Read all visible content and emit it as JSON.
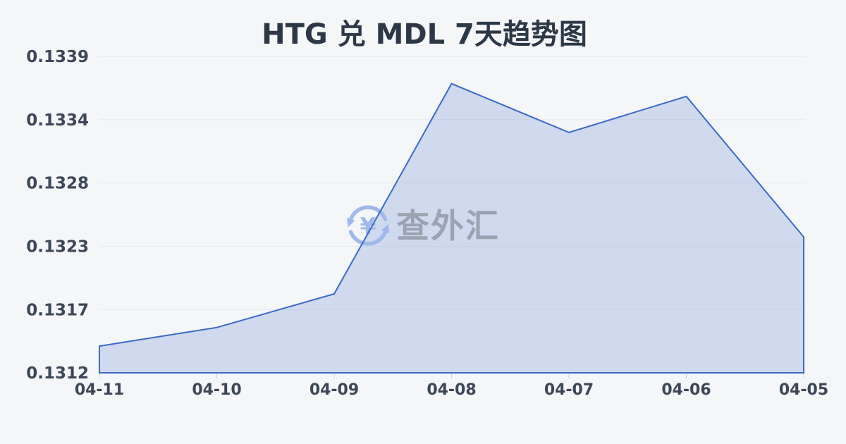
{
  "page": {
    "background_color": "#f4f6f8"
  },
  "chart_data": {
    "type": "area",
    "title": "HTG 兑 MDL 7天趋势图",
    "categories": [
      "04-11",
      "04-10",
      "04-09",
      "04-08",
      "04-07",
      "04-06",
      "04-05"
    ],
    "values": [
      0.1314,
      0.13156,
      0.13185,
      0.13366,
      0.13324,
      0.13355,
      0.13234
    ],
    "y_ticks": [
      "0.1339",
      "0.1334",
      "0.1328",
      "0.1323",
      "0.1317",
      "0.1312"
    ],
    "y_axis_range": [
      0.13117,
      0.133895
    ],
    "xlabel": "",
    "ylabel": "",
    "grid": true,
    "legend": false,
    "colors": {
      "line": "#3a6ac4",
      "fill": "rgba(111, 146, 216, 0.28)",
      "grid": "#e6e8eb",
      "tick": "#d0d3d8",
      "title": "#2d3847",
      "axis_label": "#3d4656"
    }
  },
  "watermark": {
    "text": "查外汇",
    "icon": "currency-exchange-icon",
    "icon_symbol": "¥",
    "text_color": "#9ba3b2",
    "icon_color": "#a0b9eb"
  }
}
